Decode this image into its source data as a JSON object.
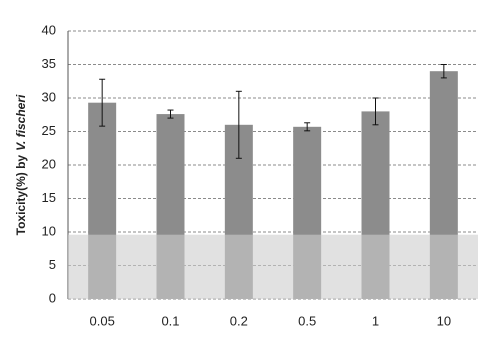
{
  "chart_data": {
    "type": "bar",
    "ylabel_parts": [
      "Toxicity(%) by",
      "V. fischeri"
    ],
    "categories": [
      "0.05",
      "0.1",
      "0.2",
      "0.5",
      "1",
      "10"
    ],
    "values": [
      29.3,
      27.6,
      26,
      25.7,
      28,
      34
    ],
    "errors": [
      3.5,
      0.6,
      5,
      0.6,
      2,
      1
    ],
    "color": "#8c8c8c",
    "band": [
      0,
      9.6
    ],
    "ylim": [
      0,
      40
    ],
    "yticks": [
      0,
      5,
      10,
      15,
      20,
      25,
      30,
      35,
      40
    ],
    "grid": true
  }
}
